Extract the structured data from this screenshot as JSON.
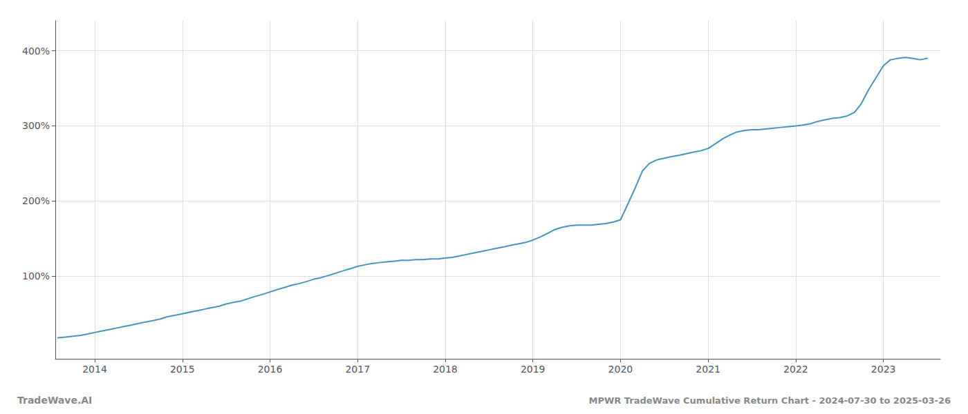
{
  "chart_data": {
    "type": "line",
    "title": "MPWR TradeWave Cumulative Return Chart - 2024-07-30 to 2025-03-26",
    "annotations": [
      "TradeWave.AI"
    ],
    "color": "#4393c3",
    "grid": true,
    "xlim": [
      2013.55,
      2023.65
    ],
    "xticks": [
      2014,
      2015,
      2016,
      2017,
      2018,
      2019,
      2020,
      2021,
      2022,
      2023
    ],
    "ylim": [
      -10,
      440
    ],
    "yticks": [
      {
        "value": 100,
        "label": "100%"
      },
      {
        "value": 200,
        "label": "200%"
      },
      {
        "value": 300,
        "label": "300%"
      },
      {
        "value": 400,
        "label": "400%"
      }
    ],
    "x": [
      2013.58,
      2013.67,
      2013.75,
      2013.83,
      2013.92,
      2014.0,
      2014.08,
      2014.17,
      2014.25,
      2014.33,
      2014.42,
      2014.5,
      2014.58,
      2014.67,
      2014.75,
      2014.83,
      2014.92,
      2015.0,
      2015.08,
      2015.17,
      2015.25,
      2015.33,
      2015.42,
      2015.5,
      2015.58,
      2015.67,
      2015.75,
      2015.83,
      2015.92,
      2016.0,
      2016.08,
      2016.17,
      2016.25,
      2016.33,
      2016.42,
      2016.5,
      2016.58,
      2016.67,
      2016.75,
      2016.83,
      2016.92,
      2017.0,
      2017.08,
      2017.17,
      2017.25,
      2017.33,
      2017.42,
      2017.5,
      2017.58,
      2017.67,
      2017.75,
      2017.83,
      2017.92,
      2018.0,
      2018.08,
      2018.17,
      2018.25,
      2018.33,
      2018.42,
      2018.5,
      2018.58,
      2018.67,
      2018.75,
      2018.83,
      2018.92,
      2019.0,
      2019.08,
      2019.17,
      2019.25,
      2019.33,
      2019.42,
      2019.5,
      2019.58,
      2019.67,
      2019.75,
      2019.83,
      2019.92,
      2020.0,
      2020.08,
      2020.17,
      2020.25,
      2020.33,
      2020.42,
      2020.5,
      2020.58,
      2020.67,
      2020.75,
      2020.83,
      2020.92,
      2021.0,
      2021.08,
      2021.17,
      2021.25,
      2021.33,
      2021.42,
      2021.5,
      2021.58,
      2021.67,
      2021.75,
      2021.83,
      2021.92,
      2022.0,
      2022.08,
      2022.17,
      2022.25,
      2022.33,
      2022.42,
      2022.5,
      2022.58,
      2022.67,
      2022.75,
      2022.83,
      2022.92,
      2023.0,
      2023.08,
      2023.17,
      2023.25,
      2023.33,
      2023.42,
      2023.5
    ],
    "values": [
      18,
      19,
      20,
      21,
      23,
      25,
      27,
      29,
      31,
      33,
      35,
      37,
      39,
      41,
      43,
      46,
      48,
      50,
      52,
      54,
      56,
      58,
      60,
      63,
      65,
      67,
      70,
      73,
      76,
      79,
      82,
      85,
      88,
      90,
      93,
      96,
      98,
      101,
      104,
      107,
      110,
      113,
      115,
      117,
      118,
      119,
      120,
      121,
      121,
      122,
      122,
      123,
      123,
      124,
      125,
      127,
      129,
      131,
      133,
      135,
      137,
      139,
      141,
      143,
      145,
      148,
      152,
      157,
      162,
      165,
      167,
      168,
      168,
      168,
      169,
      170,
      172,
      175,
      195,
      218,
      240,
      250,
      255,
      257,
      259,
      261,
      263,
      265,
      267,
      270,
      276,
      283,
      288,
      292,
      294,
      295,
      295,
      296,
      297,
      298,
      299,
      300,
      301,
      303,
      306,
      308,
      310,
      311,
      313,
      318,
      330,
      348,
      365,
      380,
      388,
      390,
      391,
      390,
      388,
      390
    ]
  }
}
